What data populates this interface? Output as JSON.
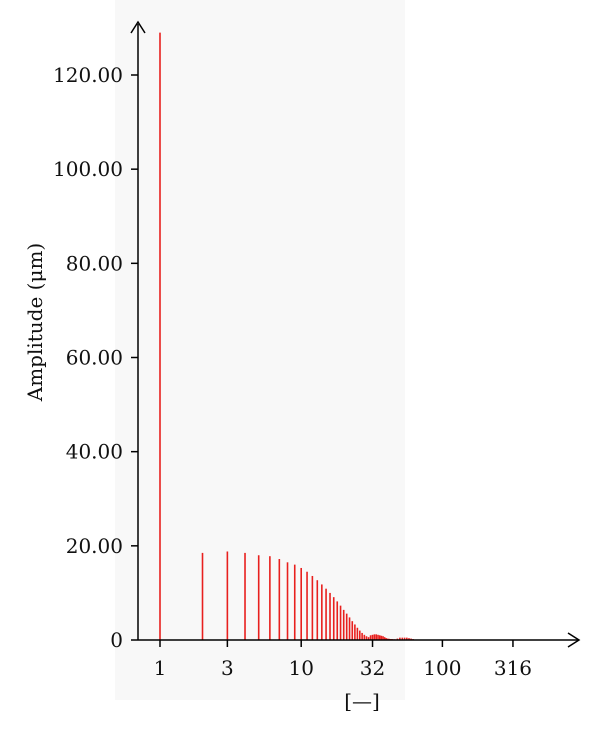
{
  "chart_data": {
    "type": "bar",
    "ylabel": "Amplitude (μm)",
    "xlabel": "[—]",
    "x_scale": "log",
    "xlim": [
      0.7,
      1000
    ],
    "ylim": [
      0,
      130
    ],
    "x_ticks": [
      1,
      3,
      10,
      32,
      100,
      316
    ],
    "x_tick_labels": [
      "1",
      "3",
      "10",
      "32",
      "100",
      "316"
    ],
    "y_ticks": [
      0,
      20,
      40,
      60,
      80,
      100,
      120
    ],
    "y_tick_labels": [
      "0",
      "20.00",
      "40.00",
      "60.00",
      "80.00",
      "100.00",
      "120.00"
    ],
    "grid": false,
    "bar_color": "#e8201e",
    "series": [
      {
        "x": [
          1,
          2,
          3,
          4,
          5,
          6,
          7,
          8,
          9,
          10,
          11,
          12,
          13,
          14,
          15,
          16,
          17,
          18,
          19,
          20,
          21,
          22,
          23,
          24,
          25,
          26,
          27,
          28,
          29,
          30,
          31,
          32,
          33,
          34,
          35,
          36,
          37,
          38,
          39,
          40,
          41,
          42,
          43,
          44,
          45,
          46,
          47,
          48,
          50,
          52,
          54,
          56,
          58,
          60,
          62
        ],
        "values": [
          129,
          18.5,
          18.8,
          18.5,
          18.0,
          17.8,
          17.2,
          16.5,
          16.0,
          15.3,
          14.5,
          13.6,
          12.7,
          11.8,
          10.9,
          10.0,
          9.1,
          8.2,
          7.3,
          6.4,
          5.6,
          4.8,
          4.0,
          3.3,
          2.6,
          2.0,
          1.5,
          1.1,
          0.8,
          0.6,
          1.0,
          1.1,
          1.2,
          1.2,
          1.1,
          1.0,
          0.9,
          0.8,
          0.6,
          0.4,
          0.3,
          0.25,
          0.2,
          0.2,
          0.15,
          0.15,
          0.1,
          0.3,
          0.5,
          0.5,
          0.5,
          0.5,
          0.4,
          0.3,
          0.2
        ]
      }
    ]
  }
}
